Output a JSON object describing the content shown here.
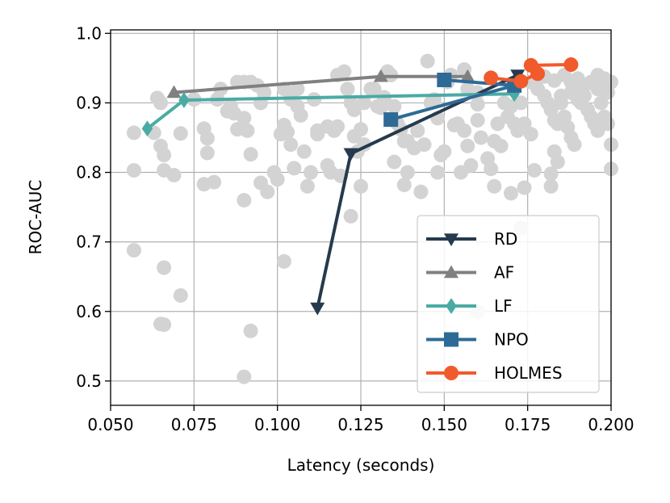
{
  "chart_data": {
    "type": "scatter",
    "title": "",
    "xlabel": "Latency (seconds)",
    "ylabel": "ROC-AUC",
    "xlim": [
      0.05,
      0.2
    ],
    "ylim": [
      0.465,
      1.005
    ],
    "grid": true,
    "legend_position": "lower-right",
    "x_ticks": [
      0.05,
      0.075,
      0.1,
      0.125,
      0.15,
      0.175,
      0.2
    ],
    "x_tick_labels": [
      "0.050",
      "0.075",
      "0.100",
      "0.125",
      "0.150",
      "0.175",
      "0.200"
    ],
    "y_ticks": [
      0.5,
      0.6,
      0.7,
      0.8,
      0.9,
      1.0
    ],
    "y_tick_labels": [
      "0.5",
      "0.6",
      "0.7",
      "0.8",
      "0.9",
      "1.0"
    ],
    "background_points": {
      "name": "candidates",
      "color": "#d3d3d3",
      "points": [
        [
          0.057,
          0.857
        ],
        [
          0.057,
          0.803
        ],
        [
          0.057,
          0.688
        ],
        [
          0.063,
          0.857
        ],
        [
          0.065,
          0.838
        ],
        [
          0.066,
          0.825
        ],
        [
          0.066,
          0.803
        ],
        [
          0.066,
          0.663
        ],
        [
          0.065,
          0.582
        ],
        [
          0.066,
          0.581
        ],
        [
          0.069,
          0.796
        ],
        [
          0.071,
          0.856
        ],
        [
          0.071,
          0.623
        ],
        [
          0.064,
          0.907
        ],
        [
          0.065,
          0.9
        ],
        [
          0.075,
          0.905
        ],
        [
          0.078,
          0.863
        ],
        [
          0.079,
          0.849
        ],
        [
          0.079,
          0.828
        ],
        [
          0.078,
          0.783
        ],
        [
          0.081,
          0.786
        ],
        [
          0.082,
          0.905
        ],
        [
          0.083,
          0.92
        ],
        [
          0.085,
          0.888
        ],
        [
          0.086,
          0.896
        ],
        [
          0.087,
          0.885
        ],
        [
          0.088,
          0.862
        ],
        [
          0.09,
          0.878
        ],
        [
          0.091,
          0.86
        ],
        [
          0.092,
          0.826
        ],
        [
          0.09,
          0.76
        ],
        [
          0.092,
          0.572
        ],
        [
          0.09,
          0.506
        ],
        [
          0.088,
          0.93
        ],
        [
          0.09,
          0.93
        ],
        [
          0.092,
          0.93
        ],
        [
          0.094,
          0.925
        ],
        [
          0.095,
          0.9
        ],
        [
          0.096,
          0.915
        ],
        [
          0.095,
          0.785
        ],
        [
          0.097,
          0.772
        ],
        [
          0.099,
          0.8
        ],
        [
          0.1,
          0.79
        ],
        [
          0.101,
          0.855
        ],
        [
          0.102,
          0.868
        ],
        [
          0.103,
          0.858
        ],
        [
          0.104,
          0.84
        ],
        [
          0.102,
          0.92
        ],
        [
          0.104,
          0.905
        ],
        [
          0.106,
          0.92
        ],
        [
          0.106,
          0.895
        ],
        [
          0.107,
          0.882
        ],
        [
          0.105,
          0.806
        ],
        [
          0.108,
          0.83
        ],
        [
          0.11,
          0.8
        ],
        [
          0.109,
          0.78
        ],
        [
          0.102,
          0.672
        ],
        [
          0.111,
          0.905
        ],
        [
          0.112,
          0.86
        ],
        [
          0.112,
          0.855
        ],
        [
          0.115,
          0.866
        ],
        [
          0.115,
          0.81
        ],
        [
          0.116,
          0.8
        ],
        [
          0.117,
          0.86
        ],
        [
          0.118,
          0.866
        ],
        [
          0.118,
          0.94
        ],
        [
          0.12,
          0.945
        ],
        [
          0.121,
          0.92
        ],
        [
          0.122,
          0.9
        ],
        [
          0.123,
          0.89
        ],
        [
          0.123,
          0.852
        ],
        [
          0.124,
          0.83
        ],
        [
          0.125,
          0.862
        ],
        [
          0.126,
          0.84
        ],
        [
          0.125,
          0.78
        ],
        [
          0.122,
          0.737
        ],
        [
          0.119,
          0.795
        ],
        [
          0.126,
          0.9
        ],
        [
          0.128,
          0.92
        ],
        [
          0.129,
          0.92
        ],
        [
          0.13,
          0.895
        ],
        [
          0.131,
          0.893
        ],
        [
          0.132,
          0.908
        ],
        [
          0.133,
          0.945
        ],
        [
          0.134,
          0.94
        ],
        [
          0.135,
          0.895
        ],
        [
          0.136,
          0.87
        ],
        [
          0.137,
          0.862
        ],
        [
          0.138,
          0.845
        ],
        [
          0.139,
          0.845
        ],
        [
          0.135,
          0.815
        ],
        [
          0.138,
          0.782
        ],
        [
          0.139,
          0.8
        ],
        [
          0.143,
          0.772
        ],
        [
          0.141,
          0.835
        ],
        [
          0.142,
          0.86
        ],
        [
          0.144,
          0.84
        ],
        [
          0.145,
          0.96
        ],
        [
          0.146,
          0.9
        ],
        [
          0.147,
          0.905
        ],
        [
          0.148,
          0.878
        ],
        [
          0.148,
          0.8
        ],
        [
          0.149,
          0.825
        ],
        [
          0.15,
          0.83
        ],
        [
          0.151,
          0.93
        ],
        [
          0.152,
          0.94
        ],
        [
          0.153,
          0.868
        ],
        [
          0.154,
          0.87
        ],
        [
          0.155,
          0.8
        ],
        [
          0.156,
          0.86
        ],
        [
          0.157,
          0.838
        ],
        [
          0.158,
          0.81
        ],
        [
          0.156,
          0.948
        ],
        [
          0.157,
          0.92
        ],
        [
          0.16,
          0.915
        ],
        [
          0.16,
          0.898
        ],
        [
          0.16,
          0.875
        ],
        [
          0.161,
          0.85
        ],
        [
          0.16,
          0.6
        ],
        [
          0.163,
          0.82
        ],
        [
          0.164,
          0.805
        ],
        [
          0.165,
          0.845
        ],
        [
          0.166,
          0.87
        ],
        [
          0.167,
          0.838
        ],
        [
          0.168,
          0.9
        ],
        [
          0.169,
          0.88
        ],
        [
          0.17,
          0.895
        ],
        [
          0.171,
          0.87
        ],
        [
          0.172,
          0.86
        ],
        [
          0.173,
          0.9
        ],
        [
          0.174,
          0.87
        ],
        [
          0.174,
          0.778
        ],
        [
          0.17,
          0.77
        ],
        [
          0.165,
          0.78
        ],
        [
          0.176,
          0.855
        ],
        [
          0.177,
          0.803
        ],
        [
          0.173,
          0.72
        ],
        [
          0.178,
          0.92
        ],
        [
          0.18,
          0.91
        ],
        [
          0.181,
          0.9
        ],
        [
          0.182,
          0.89
        ],
        [
          0.183,
          0.875
        ],
        [
          0.184,
          0.87
        ],
        [
          0.185,
          0.9
        ],
        [
          0.186,
          0.88
        ],
        [
          0.187,
          0.865
        ],
        [
          0.188,
          0.85
        ],
        [
          0.189,
          0.84
        ],
        [
          0.19,
          0.92
        ],
        [
          0.191,
          0.9
        ],
        [
          0.192,
          0.91
        ],
        [
          0.193,
          0.89
        ],
        [
          0.194,
          0.88
        ],
        [
          0.195,
          0.87
        ],
        [
          0.196,
          0.86
        ],
        [
          0.197,
          0.9
        ],
        [
          0.198,
          0.88
        ],
        [
          0.199,
          0.87
        ],
        [
          0.2,
          0.84
        ],
        [
          0.2,
          0.805
        ],
        [
          0.182,
          0.798
        ],
        [
          0.184,
          0.815
        ],
        [
          0.183,
          0.83
        ],
        [
          0.182,
          0.78
        ],
        [
          0.176,
          0.93
        ],
        [
          0.178,
          0.935
        ],
        [
          0.18,
          0.938
        ],
        [
          0.183,
          0.932
        ],
        [
          0.186,
          0.94
        ],
        [
          0.188,
          0.93
        ],
        [
          0.19,
          0.935
        ],
        [
          0.192,
          0.925
        ],
        [
          0.194,
          0.93
        ],
        [
          0.196,
          0.92
        ],
        [
          0.198,
          0.935
        ],
        [
          0.2,
          0.93
        ],
        [
          0.185,
          0.91
        ],
        [
          0.188,
          0.915
        ],
        [
          0.19,
          0.905
        ],
        [
          0.196,
          0.94
        ],
        [
          0.199,
          0.915
        ]
      ]
    },
    "series": [
      {
        "name": "RD",
        "color": "#253a4d",
        "marker": "triangle-down",
        "points": [
          [
            0.112,
            0.605
          ],
          [
            0.122,
            0.827
          ],
          [
            0.172,
            0.94
          ]
        ]
      },
      {
        "name": "AF",
        "color": "#808080",
        "marker": "triangle-up",
        "points": [
          [
            0.069,
            0.915
          ],
          [
            0.131,
            0.938
          ],
          [
            0.157,
            0.938
          ]
        ]
      },
      {
        "name": "LF",
        "color": "#4aaba4",
        "marker": "diamond",
        "points": [
          [
            0.061,
            0.863
          ],
          [
            0.072,
            0.904
          ],
          [
            0.171,
            0.913
          ]
        ]
      },
      {
        "name": "NPO",
        "color": "#2e6a96",
        "marker": "square",
        "points": [
          [
            0.134,
            0.876
          ],
          [
            0.171,
            0.925
          ],
          [
            0.15,
            0.933
          ]
        ]
      },
      {
        "name": "HOLMES",
        "color": "#f15a2b",
        "marker": "circle",
        "points": [
          [
            0.164,
            0.936
          ],
          [
            0.173,
            0.931
          ],
          [
            0.178,
            0.942
          ],
          [
            0.176,
            0.954
          ],
          [
            0.188,
            0.955
          ]
        ]
      }
    ]
  }
}
